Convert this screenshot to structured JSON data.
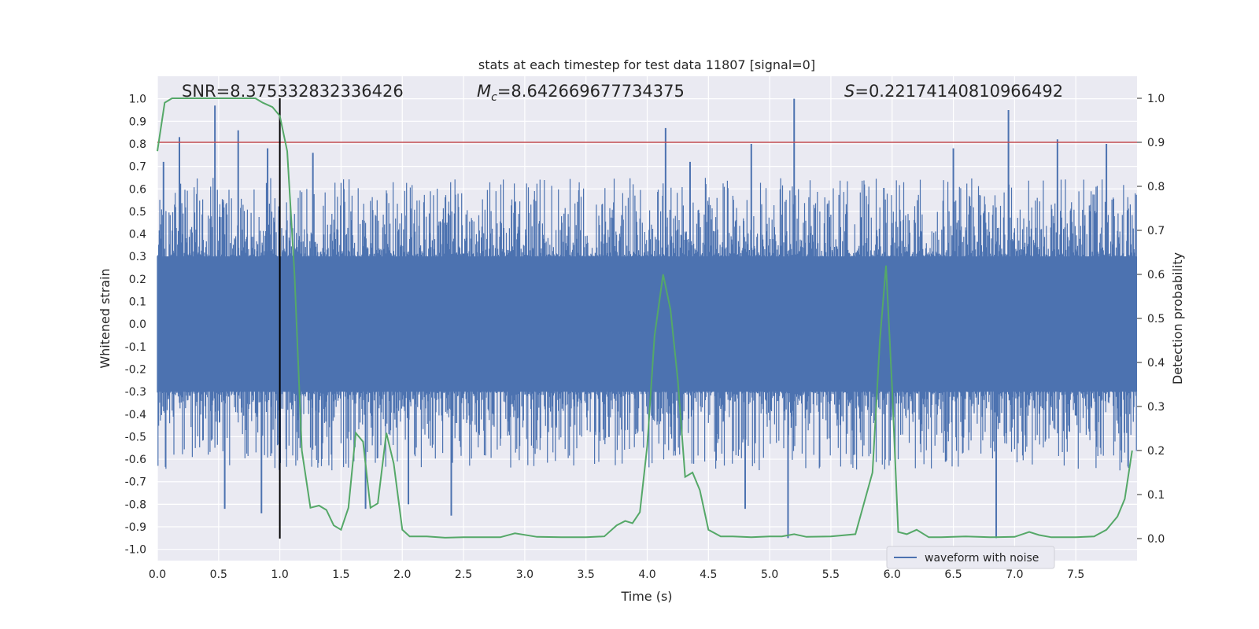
{
  "chart_data": {
    "type": "line",
    "title": "stats at each timestep for test data 11807 [signal=0]",
    "xlabel": "Time (s)",
    "ylabel": "Whitened strain",
    "y2label": "Detection probability",
    "xlim": [
      0,
      8
    ],
    "ylim": [
      -1.05,
      1.1
    ],
    "y2lim": [
      -0.05,
      1.05
    ],
    "xticks": [
      "0.0",
      "0.5",
      "1.0",
      "1.5",
      "2.0",
      "2.5",
      "3.0",
      "3.5",
      "4.0",
      "4.5",
      "5.0",
      "5.5",
      "6.0",
      "6.5",
      "7.0",
      "7.5"
    ],
    "yticks": [
      "1.0",
      "0.9",
      "0.8",
      "0.7",
      "0.6",
      "0.5",
      "0.4",
      "0.3",
      "0.2",
      "0.1",
      "0.0",
      "-0.1",
      "-0.2",
      "-0.3",
      "-0.4",
      "-0.5",
      "-0.6",
      "-0.7",
      "-0.8",
      "-0.9",
      "-1.0"
    ],
    "y2ticks": [
      "1.0",
      "0.9",
      "0.8",
      "0.7",
      "0.6",
      "0.5",
      "0.4",
      "0.3",
      "0.2",
      "0.1",
      "0.0"
    ],
    "grid": true,
    "legend": {
      "placement": "lower-right",
      "entries": [
        "waveform with noise"
      ]
    },
    "annotations": {
      "snr": "SNR=8.375332832336426",
      "mc_symbol": "M",
      "mc_sub": "c",
      "mc_value": "=8.642669677734375",
      "s_symbol": "S",
      "s_value": "=0.22174140810966492"
    },
    "threshold_line": {
      "y": 0.9,
      "color": "#c44e52"
    },
    "marker_line": {
      "x": 1.0,
      "color": "#000000"
    },
    "series": [
      {
        "name": "waveform with noise",
        "color": "#4c72b0",
        "note": "dense whitened-strain noise trace, core band roughly -0.4..0.4 with spikes",
        "core_band": [
          -0.4,
          0.42
        ],
        "spikes": [
          {
            "x": 0.05,
            "y": 0.72
          },
          {
            "x": 0.18,
            "y": 0.83
          },
          {
            "x": 0.47,
            "y": 0.97
          },
          {
            "x": 0.66,
            "y": 0.86
          },
          {
            "x": 0.9,
            "y": 0.78
          },
          {
            "x": 1.27,
            "y": 0.76
          },
          {
            "x": 4.15,
            "y": 0.87
          },
          {
            "x": 4.35,
            "y": 0.72
          },
          {
            "x": 4.85,
            "y": 0.8
          },
          {
            "x": 5.2,
            "y": 1.0
          },
          {
            "x": 6.5,
            "y": 0.78
          },
          {
            "x": 6.95,
            "y": 0.95
          },
          {
            "x": 7.35,
            "y": 0.82
          },
          {
            "x": 7.75,
            "y": 0.8
          },
          {
            "x": 0.55,
            "y": -0.82
          },
          {
            "x": 0.85,
            "y": -0.84
          },
          {
            "x": 1.7,
            "y": -0.82
          },
          {
            "x": 2.4,
            "y": -0.85
          },
          {
            "x": 4.8,
            "y": -0.82
          },
          {
            "x": 5.15,
            "y": -0.95
          },
          {
            "x": 6.85,
            "y": -0.95
          },
          {
            "x": 2.05,
            "y": -0.8
          }
        ]
      },
      {
        "name": "",
        "color": "#55a868",
        "axis": "right",
        "x": [
          0.0,
          0.06,
          0.12,
          0.2,
          0.3,
          0.4,
          0.5,
          0.6,
          0.7,
          0.8,
          0.86,
          0.94,
          1.0,
          1.06,
          1.12,
          1.18,
          1.25,
          1.32,
          1.38,
          1.44,
          1.5,
          1.56,
          1.62,
          1.68,
          1.74,
          1.8,
          1.87,
          1.93,
          2.0,
          2.06,
          2.2,
          2.35,
          2.5,
          2.65,
          2.8,
          2.92,
          3.1,
          3.3,
          3.5,
          3.65,
          3.75,
          3.82,
          3.88,
          3.94,
          4.0,
          4.06,
          4.13,
          4.19,
          4.25,
          4.31,
          4.37,
          4.43,
          4.5,
          4.6,
          4.7,
          4.85,
          5.0,
          5.1,
          5.2,
          5.3,
          5.5,
          5.7,
          5.84,
          5.9,
          5.95,
          6.0,
          6.05,
          6.12,
          6.2,
          6.3,
          6.4,
          6.6,
          6.8,
          7.0,
          7.12,
          7.2,
          7.3,
          7.5,
          7.65,
          7.75,
          7.84,
          7.9,
          7.96
        ],
        "y": [
          0.88,
          0.99,
          1.0,
          1.0,
          1.0,
          1.0,
          1.0,
          1.0,
          1.0,
          1.0,
          0.99,
          0.98,
          0.96,
          0.88,
          0.6,
          0.2,
          0.07,
          0.075,
          0.065,
          0.03,
          0.02,
          0.07,
          0.24,
          0.22,
          0.07,
          0.08,
          0.24,
          0.17,
          0.02,
          0.005,
          0.005,
          0.002,
          0.003,
          0.003,
          0.003,
          0.012,
          0.004,
          0.003,
          0.003,
          0.005,
          0.03,
          0.04,
          0.035,
          0.06,
          0.21,
          0.46,
          0.6,
          0.52,
          0.36,
          0.14,
          0.15,
          0.11,
          0.02,
          0.005,
          0.005,
          0.003,
          0.005,
          0.005,
          0.01,
          0.004,
          0.005,
          0.01,
          0.15,
          0.45,
          0.62,
          0.34,
          0.015,
          0.01,
          0.02,
          0.003,
          0.003,
          0.005,
          0.003,
          0.004,
          0.015,
          0.008,
          0.003,
          0.003,
          0.005,
          0.02,
          0.05,
          0.09,
          0.2
        ]
      }
    ]
  }
}
